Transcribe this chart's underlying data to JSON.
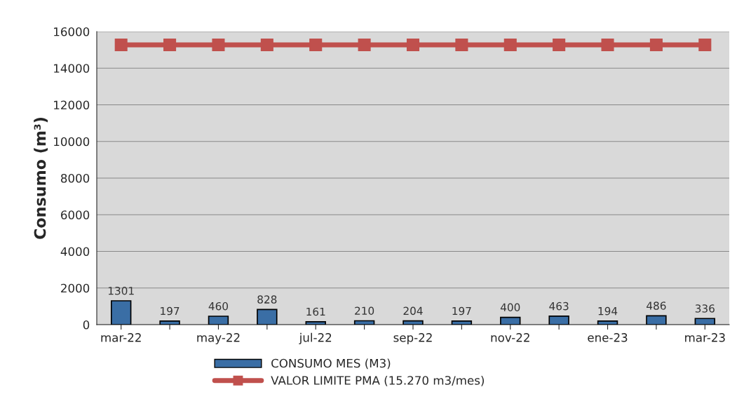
{
  "chart_data": {
    "type": "bar",
    "ylabel": "Consumo (m³)",
    "categories": [
      "mar-22",
      null,
      "may-22",
      null,
      "jul-22",
      null,
      "sep-22",
      null,
      "nov-22",
      null,
      "ene-23",
      null,
      "mar-23"
    ],
    "series": [
      {
        "name": "CONSUMO MES (M3)",
        "color": "#3a6ea5",
        "values": [
          1301,
          197,
          460,
          828,
          161,
          210,
          204,
          197,
          400,
          463,
          194,
          486,
          336
        ],
        "value_labels": [
          "1301",
          "197",
          "460",
          "828",
          "161",
          "210",
          "204",
          "197",
          "400",
          "463",
          "194",
          "486",
          "336"
        ]
      },
      {
        "name": "VALOR LIMITE PMA (15.270 m3/mes)",
        "type": "line",
        "color": "#c0504d",
        "marker": "square",
        "values": [
          15270,
          15270,
          15270,
          15270,
          15270,
          15270,
          15270,
          15270,
          15270,
          15270,
          15270,
          15270,
          15270
        ]
      }
    ],
    "ylim": [
      0,
      16000
    ],
    "yticks": [
      0,
      2000,
      4000,
      6000,
      8000,
      10000,
      12000,
      14000,
      16000
    ],
    "grid": "y",
    "legend": "bottom"
  }
}
